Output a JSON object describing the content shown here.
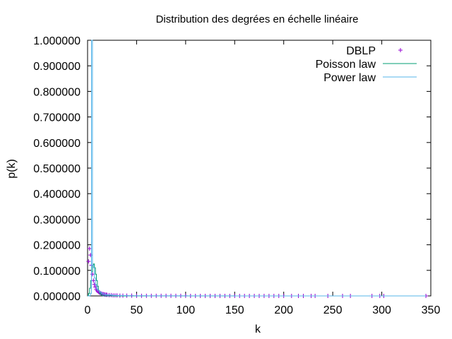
{
  "chart_data": {
    "type": "scatter",
    "title": "Distribution des degrées en échelle linéaire",
    "xlabel": "k",
    "ylabel": "p(k)",
    "xlim": [
      0,
      350
    ],
    "ylim": [
      0,
      1
    ],
    "x_ticks": [
      "0",
      "50",
      "100",
      "150",
      "200",
      "250",
      "300",
      "350"
    ],
    "x_tick_values": [
      0,
      50,
      100,
      150,
      200,
      250,
      300,
      350
    ],
    "y_ticks": [
      "0.000000",
      "0.100000",
      "0.200000",
      "0.300000",
      "0.400000",
      "0.500000",
      "0.600000",
      "0.700000",
      "0.800000",
      "0.900000",
      "1.000000"
    ],
    "y_tick_values": [
      0,
      0.1,
      0.2,
      0.3,
      0.4,
      0.5,
      0.6,
      0.7,
      0.8,
      0.9,
      1.0
    ],
    "grid": false,
    "legend_position": "top-right",
    "colors": {
      "dblp": "#9400d3",
      "poisson": "#009e73",
      "power": "#56b4e9"
    },
    "series": [
      {
        "name": "DBLP",
        "style": "points",
        "x": [
          1,
          2,
          3,
          4,
          5,
          6,
          7,
          8,
          9,
          10,
          11,
          12,
          13,
          14,
          15,
          16,
          17,
          18,
          19,
          20,
          22,
          24,
          26,
          28,
          30,
          33,
          36,
          40,
          45,
          50,
          55,
          60,
          65,
          70,
          75,
          80,
          85,
          90,
          95,
          100,
          105,
          110,
          115,
          120,
          125,
          130,
          135,
          140,
          145,
          150,
          155,
          160,
          165,
          170,
          175,
          180,
          185,
          190,
          195,
          200,
          208,
          215,
          220,
          228,
          232,
          245,
          260,
          268,
          290,
          298,
          302,
          345
        ],
        "y": [
          0.135,
          0.185,
          0.16,
          0.12,
          0.085,
          0.06,
          0.045,
          0.035,
          0.025,
          0.02,
          0.016,
          0.013,
          0.011,
          0.009,
          0.008,
          0.007,
          0.006,
          0.005,
          0.005,
          0.004,
          0.003,
          0.003,
          0.002,
          0.002,
          0.002,
          0.001,
          0.001,
          0.001,
          0.001,
          0.0005,
          0.0005,
          0.0005,
          0.0004,
          0.0003,
          0.0003,
          0.0003,
          0.0002,
          0.0002,
          0.0002,
          0.0002,
          0.0001,
          0.0001,
          0.0001,
          0.0001,
          0.0001,
          0.0001,
          0.0001,
          0.0001,
          0.0001,
          0.0001,
          0.0001,
          0.0001,
          0.0001,
          0.0001,
          0.0001,
          0.0001,
          0.0001,
          0.0001,
          0.0001,
          0.0001,
          0.0001,
          0.0001,
          0.0001,
          0.0001,
          0.0001,
          0.0001,
          0.0001,
          0.0001,
          0.0001,
          0.0001,
          0.0001,
          0.0001
        ]
      },
      {
        "name": "Poisson law",
        "style": "steps",
        "x": [
          0,
          1,
          2,
          3,
          4,
          5,
          6,
          7,
          8,
          9,
          10,
          11,
          12,
          13,
          14,
          15,
          16,
          18,
          20,
          25,
          30,
          40,
          60,
          100,
          150,
          200,
          250,
          300,
          345
        ],
        "y": [
          0.002,
          0.01,
          0.03,
          0.06,
          0.095,
          0.12,
          0.125,
          0.11,
          0.085,
          0.06,
          0.038,
          0.022,
          0.012,
          0.006,
          0.003,
          0.0015,
          0.0007,
          0.0003,
          0.0001,
          0,
          0,
          0,
          0,
          0,
          0,
          0,
          0,
          0,
          0
        ]
      },
      {
        "name": "Power law",
        "style": "steps",
        "x": [
          0,
          1,
          2,
          3,
          4,
          5,
          6,
          7,
          8,
          9,
          10,
          12,
          14,
          16,
          18,
          20,
          25,
          30,
          40,
          60,
          100,
          150,
          200,
          250,
          300,
          345
        ],
        "y": [
          0,
          0,
          0.001,
          0.01,
          1.0,
          0.12,
          0.11,
          0.07,
          0.045,
          0.03,
          0.022,
          0.015,
          0.01,
          0.007,
          0.005,
          0.004,
          0.002,
          0.0015,
          0.0008,
          0.0004,
          0.0002,
          0.0001,
          0.0001,
          0.0001,
          0.0001,
          0.0001
        ]
      }
    ]
  }
}
